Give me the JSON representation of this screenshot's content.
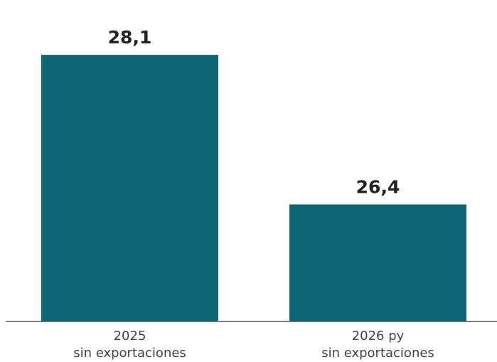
{
  "colors": {
    "bar": "#0f6674",
    "axis": "#555555"
  },
  "chart_data": {
    "type": "bar",
    "title": "",
    "xlabel": "",
    "ylabel": "",
    "grid": false,
    "categories": [
      [
        "2025",
        "sin exportaciones"
      ],
      [
        "2026 py",
        "sin exportaciones"
      ]
    ],
    "values": [
      28.1,
      26.4
    ],
    "value_labels": [
      "28,1",
      "26,4"
    ],
    "ylim": [
      25.07,
      28.4
    ]
  }
}
